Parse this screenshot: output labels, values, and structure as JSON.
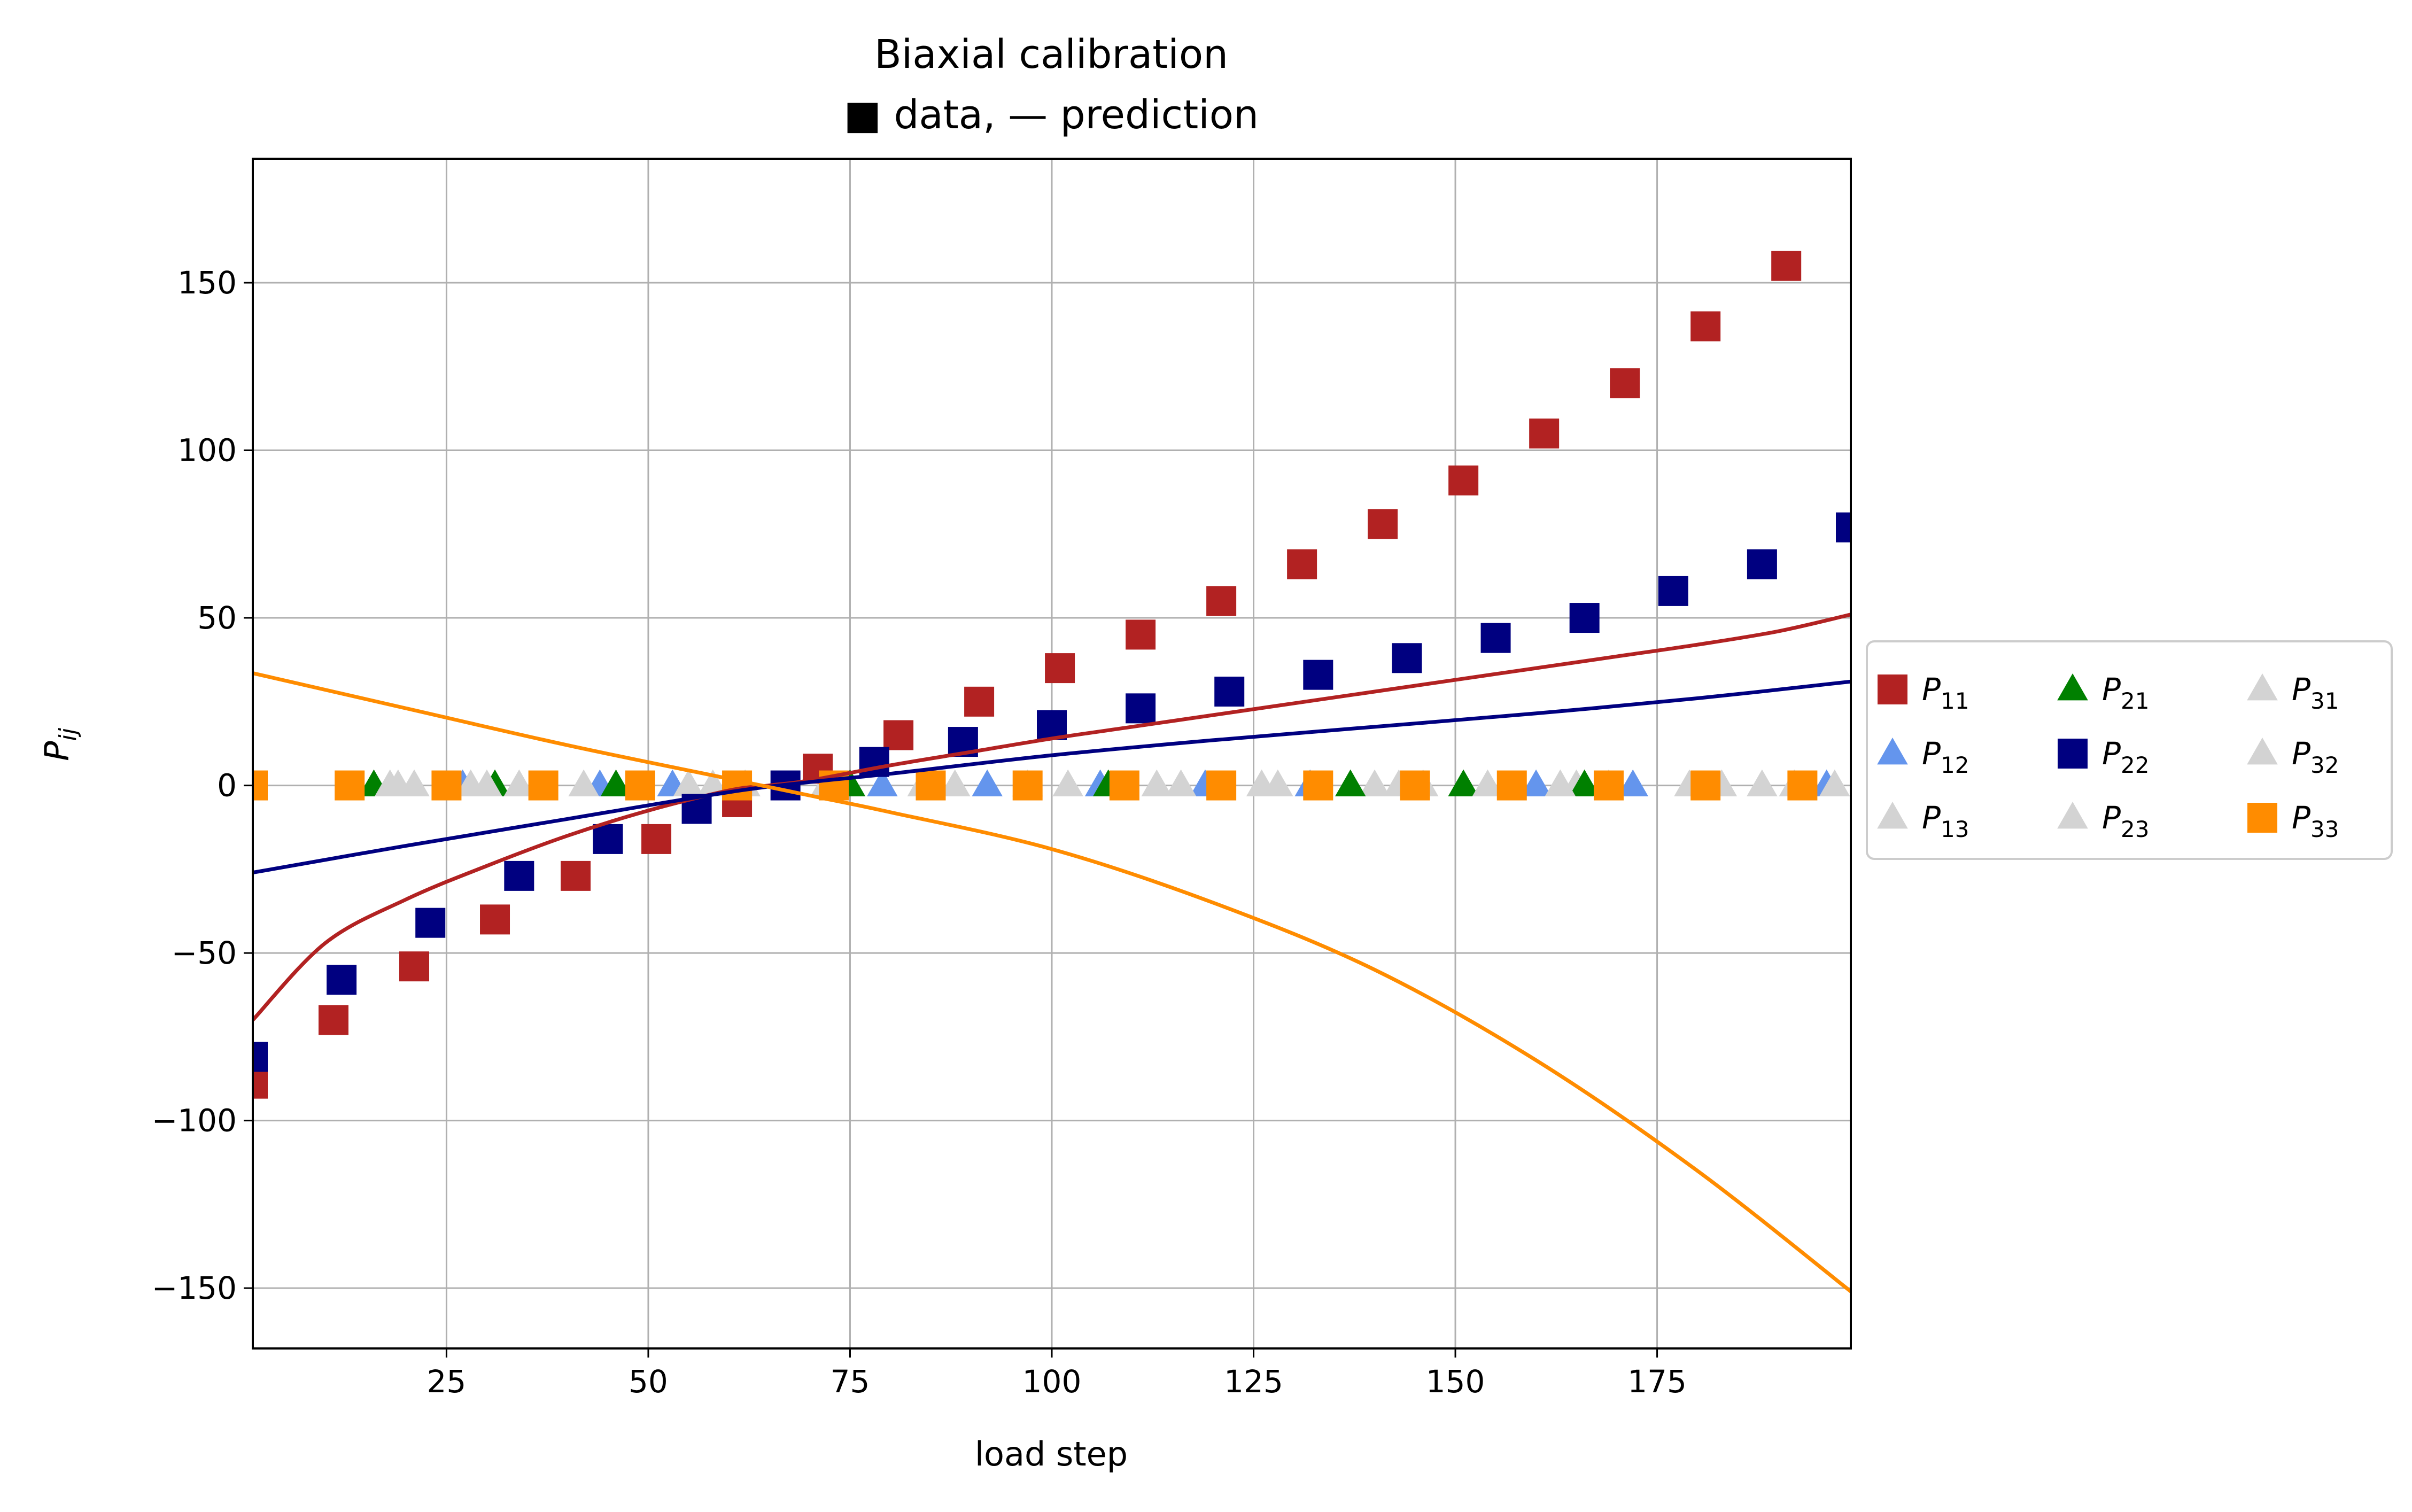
{
  "chart_data": {
    "type": "scatter",
    "title": "Biaxial calibration",
    "subtitle": "■ data, — prediction",
    "xlabel": "load step",
    "ylabel": "P_ij",
    "xlim": [
      1,
      199
    ],
    "ylim": [
      -168,
      187
    ],
    "xticks": [
      25,
      50,
      75,
      100,
      125,
      150,
      175
    ],
    "yticks": [
      -150,
      -100,
      -50,
      0,
      50,
      100,
      150
    ],
    "ytick_labels": [
      "−150",
      "−100",
      "−50",
      "0",
      "50",
      "100",
      "150"
    ],
    "grid": true,
    "legend": {
      "placement": "outside-right",
      "columns": 3
    },
    "series": [
      {
        "name": "P11",
        "base": "P",
        "sub": "11",
        "marker": "square",
        "color": "#b22222",
        "points": [
          [
            1,
            -89
          ],
          [
            11,
            -70
          ],
          [
            21,
            -54
          ],
          [
            31,
            -40
          ],
          [
            41,
            -27
          ],
          [
            51,
            -16
          ],
          [
            61,
            -5
          ],
          [
            71,
            5
          ],
          [
            81,
            15
          ],
          [
            91,
            25
          ],
          [
            101,
            35
          ],
          [
            111,
            45
          ],
          [
            121,
            55
          ],
          [
            131,
            66
          ],
          [
            141,
            78
          ],
          [
            151,
            91
          ],
          [
            161,
            105
          ],
          [
            171,
            120
          ],
          [
            181,
            137
          ],
          [
            191,
            155
          ]
        ]
      },
      {
        "name": "P12",
        "base": "P",
        "sub": "12",
        "marker": "triangle",
        "color": "#6495ed",
        "points": [
          [
            27,
            0
          ],
          [
            44,
            0
          ],
          [
            53,
            0
          ],
          [
            79,
            0
          ],
          [
            92,
            0
          ],
          [
            106,
            0
          ],
          [
            119,
            0
          ],
          [
            132,
            0
          ],
          [
            160,
            0
          ],
          [
            172,
            0
          ],
          [
            196,
            0
          ]
        ]
      },
      {
        "name": "P13",
        "base": "P",
        "sub": "13",
        "marker": "triangle",
        "color": "#d3d3d3",
        "points": [
          [
            19,
            0
          ],
          [
            28,
            0
          ],
          [
            55,
            0
          ],
          [
            84,
            0
          ],
          [
            113,
            0
          ],
          [
            140,
            0
          ],
          [
            165,
            0
          ],
          [
            188,
            0
          ]
        ]
      },
      {
        "name": "P21",
        "base": "P",
        "sub": "21",
        "marker": "triangle",
        "color": "#008000",
        "points": [
          [
            16,
            0
          ],
          [
            31,
            0
          ],
          [
            46,
            0
          ],
          [
            75,
            0
          ],
          [
            107,
            0
          ],
          [
            137,
            0
          ],
          [
            151,
            0
          ],
          [
            166,
            0
          ]
        ]
      },
      {
        "name": "P22",
        "base": "P",
        "sub": "22",
        "marker": "square",
        "color": "#000080",
        "points": [
          [
            1,
            -81
          ],
          [
            12,
            -58
          ],
          [
            23,
            -41
          ],
          [
            34,
            -27
          ],
          [
            45,
            -16
          ],
          [
            56,
            -7
          ],
          [
            67,
            0
          ],
          [
            78,
            7
          ],
          [
            89,
            13
          ],
          [
            100,
            18
          ],
          [
            111,
            23
          ],
          [
            122,
            28
          ],
          [
            133,
            33
          ],
          [
            144,
            38
          ],
          [
            155,
            44
          ],
          [
            166,
            50
          ],
          [
            177,
            58
          ],
          [
            188,
            66
          ],
          [
            199,
            77
          ]
        ]
      },
      {
        "name": "P23",
        "base": "P",
        "sub": "23",
        "marker": "triangle",
        "color": "#d3d3d3",
        "points": [
          [
            21,
            0
          ],
          [
            34,
            0
          ],
          [
            62,
            0
          ],
          [
            97,
            0
          ],
          [
            128,
            0
          ],
          [
            154,
            0
          ],
          [
            179,
            0
          ],
          [
            197,
            0
          ]
        ]
      },
      {
        "name": "P31",
        "base": "P",
        "sub": "31",
        "marker": "triangle",
        "color": "#d3d3d3",
        "points": [
          [
            18,
            0
          ],
          [
            42,
            0
          ],
          [
            72,
            0
          ],
          [
            102,
            0
          ],
          [
            126,
            0
          ],
          [
            143,
            0
          ],
          [
            163,
            0
          ],
          [
            183,
            0
          ]
        ]
      },
      {
        "name": "P32",
        "base": "P",
        "sub": "32",
        "marker": "triangle",
        "color": "#d3d3d3",
        "points": [
          [
            30,
            0
          ],
          [
            58,
            0
          ],
          [
            88,
            0
          ],
          [
            116,
            0
          ],
          [
            146,
            0
          ],
          [
            169,
            0
          ],
          [
            192,
            0
          ]
        ]
      },
      {
        "name": "P33",
        "base": "P",
        "sub": "33",
        "marker": "square",
        "color": "#ff8c00",
        "points": [
          [
            1,
            0
          ],
          [
            13,
            0
          ],
          [
            25,
            0
          ],
          [
            37,
            0
          ],
          [
            49,
            0
          ],
          [
            61,
            0
          ],
          [
            73,
            0
          ],
          [
            85,
            0
          ],
          [
            97,
            0
          ],
          [
            109,
            0
          ],
          [
            121,
            0
          ],
          [
            133,
            0
          ],
          [
            145,
            0
          ],
          [
            157,
            0
          ],
          [
            169,
            0
          ],
          [
            181,
            0
          ],
          [
            193,
            0
          ]
        ]
      }
    ],
    "prediction_lines": [
      {
        "of": "P11",
        "color": "#b22222",
        "x": [
          1,
          10,
          20,
          30,
          40,
          50,
          60,
          65,
          70,
          80,
          90,
          100,
          110,
          120,
          130,
          140,
          150,
          160,
          170,
          180,
          190,
          199
        ],
        "y": [
          -70,
          -47,
          -34,
          -24,
          -15,
          -7.5,
          -1.5,
          0,
          1.5,
          6,
          10,
          14,
          17.5,
          21,
          24.5,
          28,
          31.5,
          35,
          38.5,
          42,
          46,
          51
        ]
      },
      {
        "of": "P22",
        "color": "#000080",
        "x": [
          1,
          20,
          40,
          60,
          70,
          80,
          100,
          120,
          140,
          160,
          180,
          199
        ],
        "y": [
          -26,
          -18,
          -10,
          -2,
          1,
          3.5,
          9,
          13.5,
          17.5,
          21.5,
          26,
          31
        ]
      },
      {
        "of": "P33",
        "color": "#ff8c00",
        "x": [
          1,
          20,
          40,
          60,
          70,
          80,
          100,
          120,
          140,
          160,
          180,
          199
        ],
        "y": [
          33.5,
          23,
          12,
          2,
          -3,
          -8,
          -19,
          -35,
          -55,
          -82,
          -115,
          -151
        ]
      }
    ]
  }
}
